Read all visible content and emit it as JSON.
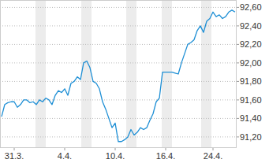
{
  "chart_data": {
    "type": "line",
    "categories": [
      null,
      null,
      null,
      null,
      "31.3.",
      null,
      null,
      null,
      null,
      null,
      null,
      null,
      null,
      null,
      null,
      null,
      null,
      null,
      null,
      null,
      "4.4.",
      null,
      null,
      null,
      null,
      null,
      null,
      null,
      null,
      null,
      null,
      null,
      null,
      null,
      null,
      null,
      "10.4.",
      null,
      null,
      null,
      null,
      null,
      null,
      null,
      null,
      null,
      null,
      null,
      null,
      null,
      null,
      null,
      "16.4.",
      null,
      null,
      null,
      null,
      null,
      null,
      null,
      null,
      null,
      null,
      null,
      null,
      null,
      null,
      "24.4.",
      null,
      null,
      null,
      null,
      null,
      null,
      null
    ],
    "values": [
      91.42,
      91.55,
      91.57,
      91.58,
      91.58,
      91.52,
      91.55,
      91.6,
      91.6,
      91.57,
      91.58,
      91.55,
      91.6,
      91.58,
      91.62,
      91.6,
      91.55,
      91.65,
      91.7,
      91.68,
      91.72,
      91.65,
      91.78,
      91.8,
      91.85,
      91.82,
      92.0,
      92.02,
      91.95,
      91.8,
      91.78,
      91.72,
      91.58,
      91.5,
      91.4,
      91.3,
      91.35,
      91.15,
      91.15,
      91.17,
      91.2,
      91.28,
      91.22,
      91.25,
      91.3,
      91.28,
      91.3,
      91.38,
      91.45,
      91.58,
      91.62,
      91.9,
      91.9,
      91.9,
      91.9,
      91.89,
      91.88,
      92.0,
      92.1,
      92.2,
      92.22,
      92.25,
      92.35,
      92.4,
      92.33,
      92.45,
      92.48,
      92.55,
      92.5,
      92.52,
      92.48,
      92.5,
      92.55,
      92.57,
      92.55
    ],
    "color": "#1e8fd5",
    "ylim": [
      91.08,
      92.68
    ],
    "yticks": [
      {
        "value": 91.2,
        "label": "91,20"
      },
      {
        "value": 91.4,
        "label": "91,40"
      },
      {
        "value": 91.6,
        "label": "91,60"
      },
      {
        "value": 91.8,
        "label": "91,80"
      },
      {
        "value": 92.0,
        "label": "92,00"
      },
      {
        "value": 92.2,
        "label": "92,20"
      },
      {
        "value": 92.4,
        "label": "92,40"
      },
      {
        "value": 92.6,
        "label": "92,60"
      }
    ],
    "grid": true
  }
}
